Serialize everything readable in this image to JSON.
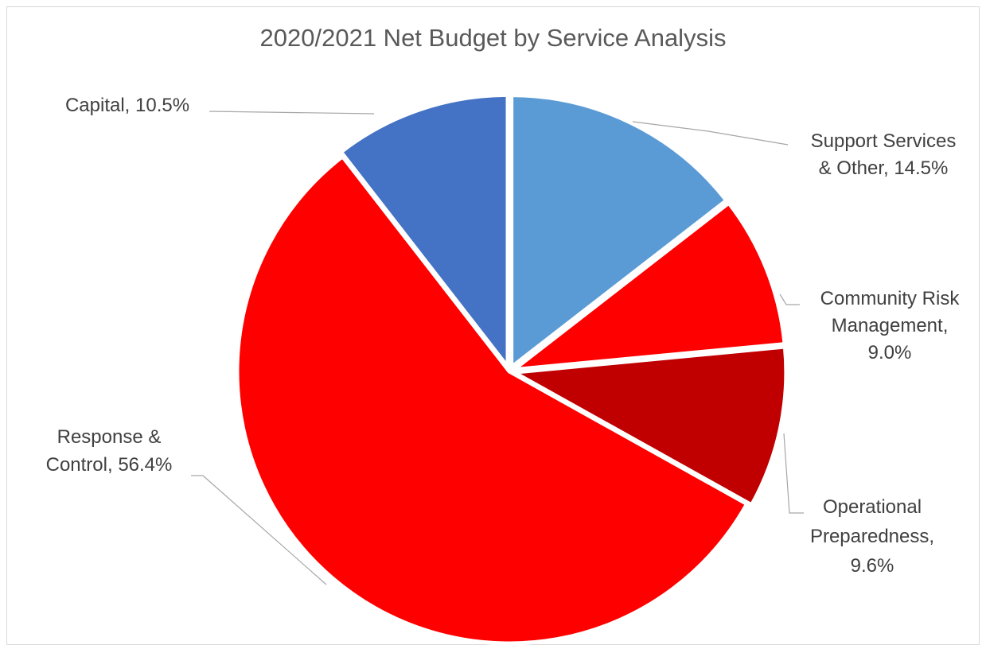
{
  "chart_data": {
    "type": "pie",
    "title": "2020/2021 Net Budget by Service Analysis",
    "slices": [
      {
        "label_lines": [
          "Support Services",
          "& Other, 14.5%"
        ],
        "value": 14.5,
        "color": "#5b9bd5"
      },
      {
        "label_lines": [
          "Community Risk",
          "Management,",
          "9.0%"
        ],
        "value": 9.0,
        "color": "#ff0000"
      },
      {
        "label_lines": [
          "Operational",
          "Preparedness,",
          "9.6%"
        ],
        "value": 9.6,
        "color": "#c00000"
      },
      {
        "label_lines": [
          "Response &",
          "Control, 56.4%"
        ],
        "value": 56.4,
        "color": "#ff0000"
      },
      {
        "label_lines": [
          "Capital, 10.5%"
        ],
        "value": 10.5,
        "color": "#4472c4"
      }
    ],
    "start_angle": "12 o'clock",
    "direction": "clockwise",
    "slice_separator_color": "#ffffff",
    "leader_line_color": "#a6a6a6",
    "legend": "none"
  }
}
